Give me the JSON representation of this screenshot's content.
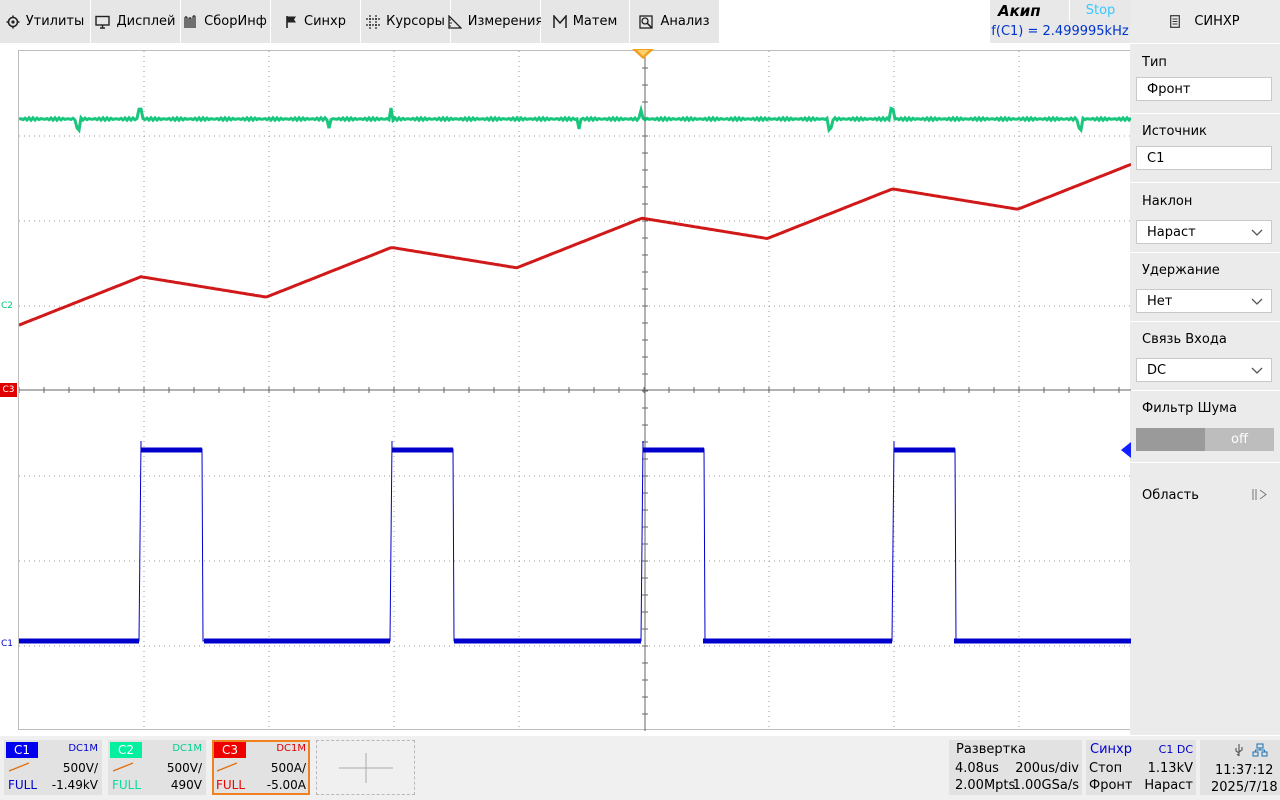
{
  "menu": [
    {
      "label": "Утилиты",
      "icon": "gear-icon"
    },
    {
      "label": "Дисплей",
      "icon": "monitor-icon"
    },
    {
      "label": "СборИнф",
      "icon": "acquire-icon"
    },
    {
      "label": "Синхр",
      "icon": "flag-icon"
    },
    {
      "label": "Курсоры",
      "icon": "cursor-icon"
    },
    {
      "label": "Измерения",
      "icon": "measure-icon"
    },
    {
      "label": "Матем",
      "icon": "math-icon"
    },
    {
      "label": "Анализ",
      "icon": "analysis-icon"
    }
  ],
  "brand": {
    "logo": "Акип",
    "run_state": "Stop",
    "freq": "f(C1) = 2.499995kHz"
  },
  "panel": {
    "title": "СИНХР",
    "type_label": "Тип",
    "type_value": "Фронт",
    "source_label": "Источник",
    "source_value": "C1",
    "slope_label": "Наклон",
    "slope_value": "Нараст",
    "holdoff_label": "Удержание",
    "holdoff_value": "Нет",
    "coupling_label": "Связь Входа",
    "coupling_value": "DC",
    "noise_label": "Фильтр Шума",
    "noise_value": "off",
    "area_label": "Область"
  },
  "markers": {
    "c2": "C2",
    "c3": "C3",
    "c1": "C1"
  },
  "channels": [
    {
      "tag": "C1",
      "coupling": "DC1M",
      "scale": "500V/",
      "offset": "-1.49kV",
      "bw": "FULL",
      "color": "#0000ee"
    },
    {
      "tag": "C2",
      "coupling": "DC1M",
      "scale": "500V/",
      "offset": "490V",
      "bw": "FULL",
      "color": "#00e8a0"
    },
    {
      "tag": "C3",
      "coupling": "DC1M",
      "scale": "500A/",
      "offset": "-5.00A",
      "bw": "FULL",
      "color": "#ee0000"
    }
  ],
  "timebase": {
    "label": "Развертка",
    "delay": "4.08us",
    "scale": "200us/div",
    "points": "2.00Mpts",
    "rate": "1.00GSa/s"
  },
  "trigger": {
    "label": "Синхр",
    "src": "C1 DC",
    "state": "Стоп",
    "level": "1.13kV",
    "type": "Фронт",
    "slope": "Нараст"
  },
  "clock": {
    "time": "11:37:12",
    "date": "2025/7/18"
  },
  "colors": {
    "ch1": "#0000cc",
    "ch2": "#00c070",
    "ch3": "#cc0000",
    "trigger": "#f0a020"
  }
}
